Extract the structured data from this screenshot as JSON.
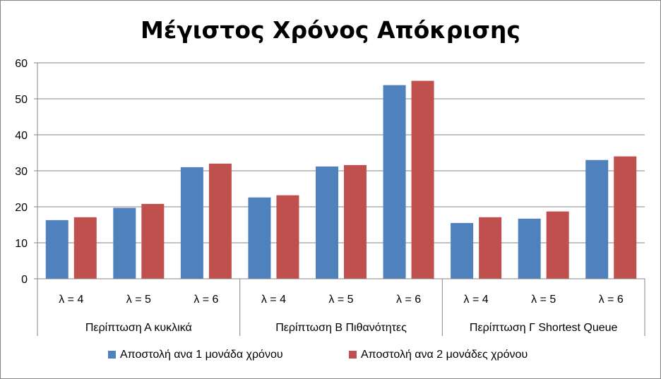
{
  "chart_data": {
    "type": "bar",
    "title": "Μέγιστος Χρόνος Απόκρισης",
    "xlabel": "",
    "ylabel": "",
    "ylim": [
      0,
      60
    ],
    "yticks": [
      0,
      10,
      20,
      30,
      40,
      50,
      60
    ],
    "grid": true,
    "legend_position": "bottom",
    "groups": [
      {
        "label": "Περίπτωση Α κυκλικά",
        "categories": [
          "λ = 4",
          "λ = 5",
          "λ = 6"
        ]
      },
      {
        "label": "Περίπτωση Β Πιθανότητες",
        "categories": [
          "λ = 4",
          "λ = 5",
          "λ = 6"
        ]
      },
      {
        "label": "Περίπτωση Γ  Shortest Queue",
        "categories": [
          "λ = 4",
          "λ = 5",
          "λ = 6"
        ]
      }
    ],
    "series": [
      {
        "name": "Αποστολή ανα 1 μονάδα χρόνου",
        "color": "#4f81bd",
        "values": [
          16.3,
          19.7,
          31.0,
          22.6,
          31.2,
          53.8,
          15.5,
          16.7,
          33.0
        ]
      },
      {
        "name": "Αποστολή ανα 2 μονάδες χρόνου",
        "color": "#c0504d",
        "values": [
          17.1,
          20.8,
          32.0,
          23.2,
          31.6,
          55.0,
          17.1,
          18.7,
          34.0
        ]
      }
    ]
  }
}
